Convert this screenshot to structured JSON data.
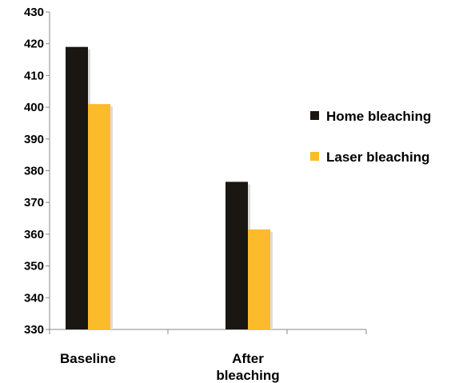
{
  "chart_data": {
    "type": "bar",
    "categories": [
      [
        "Baseline"
      ],
      [
        "After",
        "bleaching"
      ]
    ],
    "series": [
      {
        "name": "Home bleaching",
        "values": [
          419,
          376.5
        ],
        "color": "#1a1712"
      },
      {
        "name": "Laser bleaching",
        "values": [
          401,
          361.5
        ],
        "color": "#fbbb2a"
      }
    ],
    "ylim": [
      330,
      430
    ],
    "yticks": [
      330,
      340,
      350,
      360,
      370,
      380,
      390,
      400,
      410,
      420,
      430
    ],
    "title": "",
    "xlabel": "",
    "ylabel": "",
    "grid": false,
    "legend_position": "right"
  }
}
